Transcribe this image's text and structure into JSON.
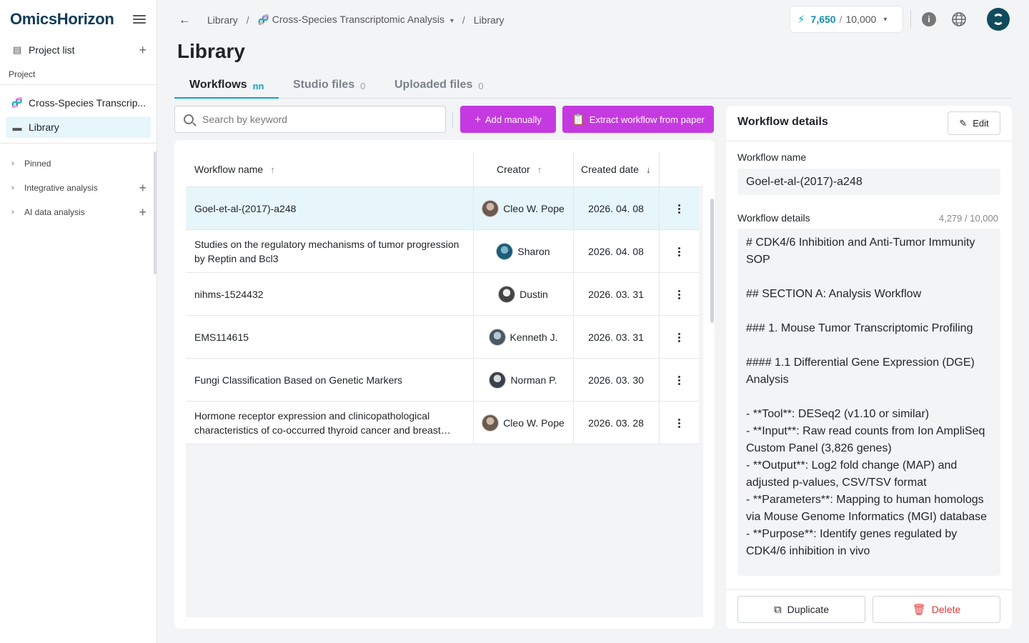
{
  "brand": "OmicsHorizon",
  "sidebar": {
    "project_list": "Project list",
    "section_label": "Project",
    "project_name": "Cross-Species Transcrip...",
    "library": "Library",
    "pinned": "Pinned",
    "integrative": "Integrative analysis",
    "ai_data": "AI data analysis"
  },
  "breadcrumb": {
    "root": "Library",
    "project": "Cross-Species Transcriptomic Analysis",
    "current": "Library"
  },
  "credits": {
    "used": "7,650",
    "total": "10,000"
  },
  "page_title": "Library",
  "tabs": [
    {
      "label": "Workflows",
      "count": "nn"
    },
    {
      "label": "Studio files",
      "count": "0"
    },
    {
      "label": "Uploaded files",
      "count": "0"
    }
  ],
  "search": {
    "placeholder": "Search by keyword"
  },
  "buttons": {
    "add_manually": "Add manually",
    "extract": "Extract workflow from paper"
  },
  "table": {
    "headers": {
      "name": "Workflow name",
      "creator": "Creator",
      "date": "Created date"
    },
    "rows": [
      {
        "name": "Goel-et-al-(2017)-a248",
        "creator": "Cleo W. Pope",
        "date": "2026. 04. 08"
      },
      {
        "name": "Studies on the regulatory mechanisms of tumor progression by Reptin and Bcl3",
        "creator": "Sharon",
        "date": "2026. 04. 08"
      },
      {
        "name": "nihms-1524432",
        "creator": "Dustin",
        "date": "2026. 03. 31"
      },
      {
        "name": "EMS114615",
        "creator": "Kenneth J.",
        "date": "2026. 03. 31"
      },
      {
        "name": "Fungi Classification Based on Genetic Markers",
        "creator": "Norman P.",
        "date": "2026. 03. 30"
      },
      {
        "name": "Hormone receptor expression and clinicopathological characteristics of co-occurred thyroid cancer and breast cancer",
        "creator": "Cleo W. Pope",
        "date": "2026. 03. 28"
      }
    ]
  },
  "details": {
    "title": "Workflow details",
    "edit": "Edit",
    "name_label": "Workflow name",
    "name_value": "Goel-et-al-(2017)-a248",
    "details_label": "Workflow details",
    "char_count": "4,279 / 10,000",
    "lines": [
      "# CDK4/6 Inhibition and Anti-Tumor Immunity SOP",
      "",
      "## SECTION A: Analysis Workflow",
      "",
      "### 1. Mouse Tumor Transcriptomic Profiling",
      "",
      "#### 1.1 Differential Gene Expression (DGE) Analysis",
      "",
      "- **Tool**: DESeq2 (v1.10 or similar)",
      "- **Input**: Raw read counts from Ion AmpliSeq Custom Panel (3,826 genes)",
      "- **Output**: Log2 fold change (MAP) and adjusted p-values, CSV/TSV format",
      "- **Parameters**: Mapping to human homologs via Mouse Genome Informatics (MGI) database",
      "- **Purpose**: Identify genes regulated by CDK4/6 inhibition in vivo"
    ],
    "duplicate": "Duplicate",
    "delete": "Delete"
  }
}
